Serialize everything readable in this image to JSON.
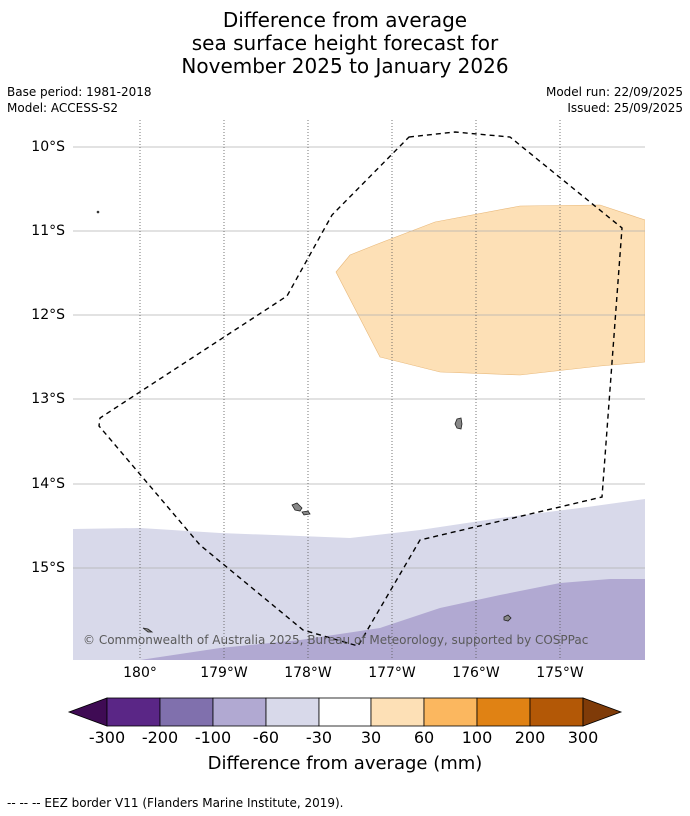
{
  "title": {
    "line1": "Difference from average",
    "line2": "sea surface height forecast for",
    "line3": "November 2025 to January 2026"
  },
  "meta": {
    "base_period": "Base period: 1981-2018",
    "model": "Model: ACCESS-S2",
    "model_run": "Model run: 22/09/2025",
    "issued": "Issued: 25/09/2025"
  },
  "map": {
    "lat_labels": [
      "10°S",
      "11°S",
      "12°S",
      "13°S",
      "14°S",
      "15°S"
    ],
    "lon_labels": [
      "180°",
      "179°W",
      "178°W",
      "177°W",
      "176°W",
      "175°W"
    ],
    "copyright": "© Commonwealth of Australia 2025, Bureau of Meteorology, supported by COSPPac",
    "colors": {
      "anomaly_30_60": "#fde0b6",
      "anomaly_neg30_neg60": "#d8d9ea",
      "anomaly_neg60_neg100": "#b1a9d2"
    }
  },
  "colorbar": {
    "labels": [
      "-300",
      "-200",
      "-100",
      "-60",
      "-30",
      "30",
      "60",
      "100",
      "200",
      "300"
    ],
    "title": "Difference from average (mm)",
    "colors": [
      "#3f0b54",
      "#5a2686",
      "#8070ad",
      "#b1a9d2",
      "#d8d9ea",
      "#ffffff",
      "#fde0b6",
      "#fbb75f",
      "#e08214",
      "#b35806",
      "#7f3b08"
    ]
  },
  "footer": {
    "eez": "--  --  -- EEZ border V11 (Flanders Marine Institute, 2019)."
  }
}
